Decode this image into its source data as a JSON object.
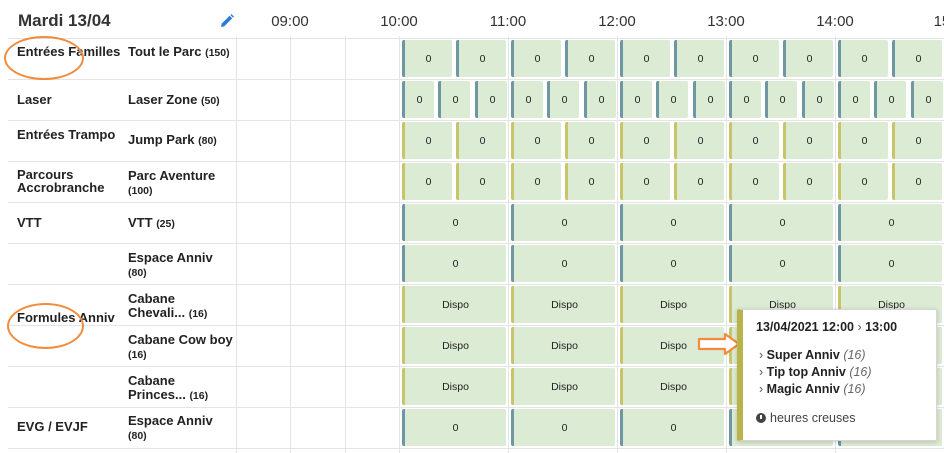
{
  "header": {
    "date": "Mardi 13/04",
    "times": [
      "09:00",
      "10:00",
      "11:00",
      "12:00",
      "13:00",
      "14:00",
      "15:"
    ]
  },
  "categories": [
    "Entrées Familles",
    "Laser",
    "Entrées Trampo",
    "Parcours Accrobranche",
    "VTT",
    "Formules Anniv",
    "EVG / EVJF"
  ],
  "resources": [
    {
      "name": "Tout le Parc",
      "cap": "(150)"
    },
    {
      "name": "Laser Zone",
      "cap": "(50)"
    },
    {
      "name": "Jump Park",
      "cap": "(80)"
    },
    {
      "name": "Parc Aventure",
      "cap": "(100)"
    },
    {
      "name": "VTT",
      "cap": "(25)"
    },
    {
      "name": "Espace Anniv",
      "cap": "(80)"
    },
    {
      "name": "Cabane Chevali...",
      "cap": "(16)"
    },
    {
      "name": "Cabane Cow boy",
      "cap": "(16)"
    },
    {
      "name": "Cabane Princes...",
      "cap": "(16)"
    },
    {
      "name": "Espace Anniv",
      "cap": "(80)"
    }
  ],
  "cells": {
    "zero": "0",
    "dispo": "Dispo"
  },
  "popup": {
    "title": "13/04/2021 12:00",
    "end": "13:00",
    "items": [
      {
        "name": "Super Anniv",
        "cap": "(16)"
      },
      {
        "name": "Tip top Anniv",
        "cap": "(16)"
      },
      {
        "name": "Magic Anniv",
        "cap": "(16)"
      }
    ],
    "footer": "heures creuses"
  },
  "colors": {
    "cell_bg": "#dcebd4",
    "bar_blue": "#6f97a3",
    "bar_yellow": "#c8c46a",
    "annotation": "#f08c3c"
  }
}
